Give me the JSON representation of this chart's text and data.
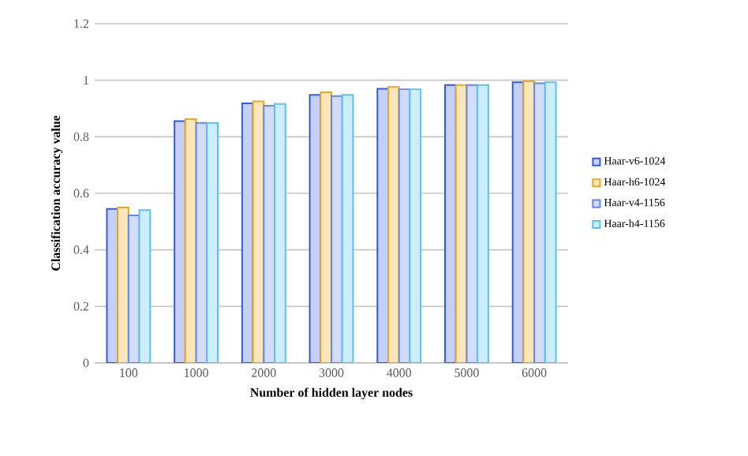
{
  "chart_data": {
    "type": "bar",
    "xlabel": "Number of hidden layer nodes",
    "ylabel": "Classification accuracy value",
    "categories": [
      "100",
      "1000",
      "2000",
      "3000",
      "4000",
      "5000",
      "6000"
    ],
    "series": [
      {
        "name": "Haar-v6-1024",
        "color": "#c5d0f4",
        "values": [
          0.545,
          0.855,
          0.918,
          0.948,
          0.97,
          0.983,
          0.993
        ]
      },
      {
        "name": "Haar-h6-1024",
        "color": "#fae6bb",
        "values": [
          0.55,
          0.862,
          0.925,
          0.957,
          0.976,
          0.983,
          0.996
        ]
      },
      {
        "name": "Haar-v4-1156",
        "color": "#d2dcf8",
        "values": [
          0.522,
          0.849,
          0.91,
          0.944,
          0.968,
          0.983,
          0.989
        ]
      },
      {
        "name": "Haar-h4-1156",
        "color": "#cdedfa",
        "values": [
          0.541,
          0.849,
          0.916,
          0.948,
          0.968,
          0.983,
          0.993
        ]
      }
    ],
    "ylim": [
      0,
      1.2
    ],
    "yticks": [
      0,
      0.2,
      0.4,
      0.6,
      0.8,
      1,
      1.2
    ],
    "grid": "y",
    "legend": "right"
  }
}
